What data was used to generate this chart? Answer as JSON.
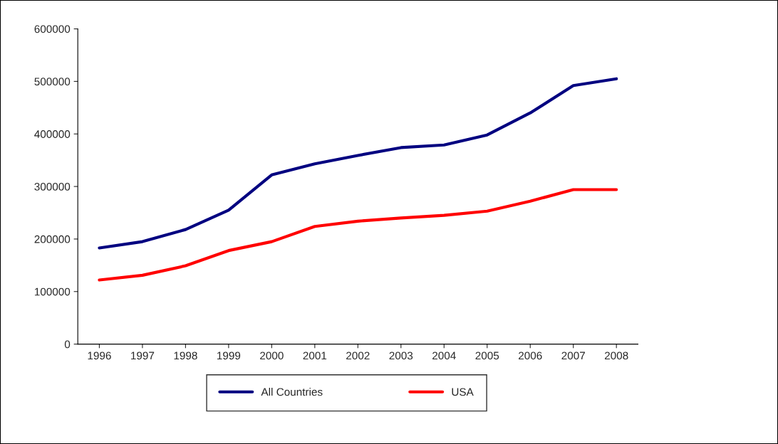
{
  "chart_data": {
    "type": "line",
    "categories": [
      "1996",
      "1997",
      "1998",
      "1999",
      "2000",
      "2001",
      "2002",
      "2003",
      "2004",
      "2005",
      "2006",
      "2007",
      "2008"
    ],
    "series": [
      {
        "name": "All Countries",
        "color": "#000080",
        "values": [
          183000,
          195000,
          218000,
          255000,
          322000,
          343000,
          359000,
          374000,
          379000,
          398000,
          440000,
          492000,
          505000
        ]
      },
      {
        "name": "USA",
        "color": "#ff0000",
        "values": [
          122000,
          131000,
          149000,
          178000,
          195000,
          224000,
          234000,
          240000,
          245000,
          253000,
          272000,
          294000,
          294000
        ]
      }
    ],
    "ylim": [
      0,
      600000
    ],
    "yticks": [
      0,
      100000,
      200000,
      300000,
      400000,
      500000,
      600000
    ],
    "grid": false,
    "legend": "bottom",
    "marker": "none",
    "line_style": "solid"
  }
}
